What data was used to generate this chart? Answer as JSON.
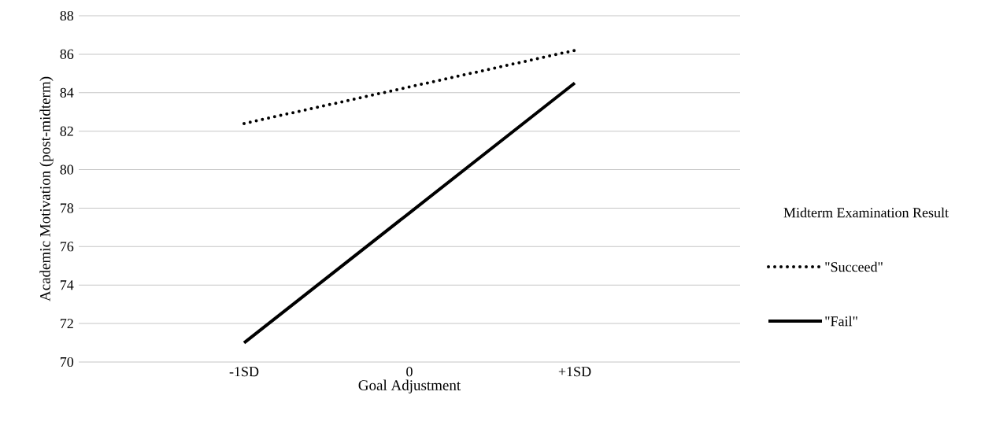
{
  "chart_data": {
    "type": "line",
    "xlabel": "Goal Adjustment",
    "ylabel": "Academic Motivation (post-midterm)",
    "legend_title": "Midterm Examination Result",
    "categories": [
      null,
      "-1SD",
      "0",
      "+1SD",
      null
    ],
    "series": [
      {
        "name": "\"Succeed\"",
        "color": "#000000",
        "line_style": "dotted",
        "values": [
          null,
          82.4,
          84.3,
          86.2,
          null
        ]
      },
      {
        "name": "\"Fail\"",
        "color": "#000000",
        "line_style": "solid",
        "values": [
          null,
          71.0,
          77.75,
          84.5,
          null
        ]
      }
    ],
    "ylim": [
      70,
      88
    ],
    "yticks": [
      70,
      72,
      74,
      76,
      78,
      80,
      82,
      84,
      86,
      88
    ],
    "grid": "y",
    "legend": "right",
    "marker": "none"
  }
}
